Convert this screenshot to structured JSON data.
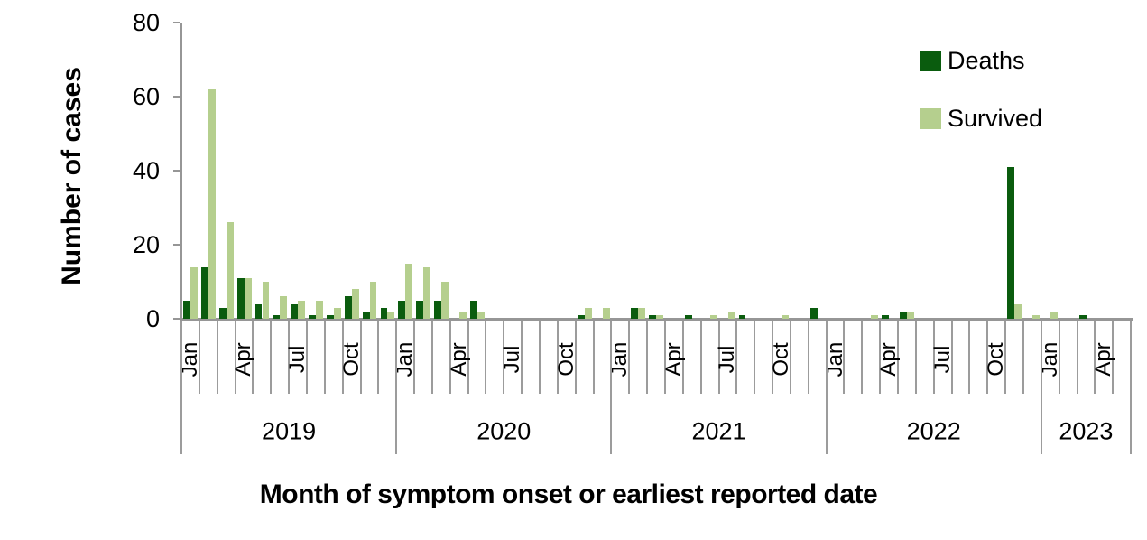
{
  "chart_data": {
    "type": "bar",
    "title": "",
    "xlabel": "Month of symptom onset or earliest reported date",
    "ylabel": "Number of cases",
    "ylim": [
      0,
      80
    ],
    "yticks": [
      0,
      20,
      40,
      60,
      80
    ],
    "grid": false,
    "legend_position": "top-right",
    "categories": [
      "Jan 2019",
      "Feb 2019",
      "Mar 2019",
      "Apr 2019",
      "May 2019",
      "Jun 2019",
      "Jul 2019",
      "Aug 2019",
      "Sep 2019",
      "Oct 2019",
      "Nov 2019",
      "Dec 2019",
      "Jan 2020",
      "Feb 2020",
      "Mar 2020",
      "Apr 2020",
      "May 2020",
      "Jun 2020",
      "Jul 2020",
      "Aug 2020",
      "Sep 2020",
      "Oct 2020",
      "Nov 2020",
      "Dec 2020",
      "Jan 2021",
      "Feb 2021",
      "Mar 2021",
      "Apr 2021",
      "May 2021",
      "Jun 2021",
      "Jul 2021",
      "Aug 2021",
      "Sep 2021",
      "Oct 2021",
      "Nov 2021",
      "Dec 2021",
      "Jan 2022",
      "Feb 2022",
      "Mar 2022",
      "Apr 2022",
      "May 2022",
      "Jun 2022",
      "Jul 2022",
      "Aug 2022",
      "Sep 2022",
      "Oct 2022",
      "Nov 2022",
      "Dec 2022",
      "Jan 2023",
      "Feb 2023",
      "Mar 2023",
      "Apr 2023",
      "May 2023"
    ],
    "series": [
      {
        "name": "Deaths",
        "color": "#0a5c0e",
        "values": [
          5,
          14,
          3,
          11,
          4,
          1,
          4,
          1,
          1,
          6,
          2,
          3,
          5,
          5,
          5,
          0,
          5,
          0,
          0,
          0,
          0,
          0,
          1,
          0,
          0,
          3,
          1,
          0,
          1,
          0,
          0,
          1,
          0,
          0,
          0,
          3,
          0,
          0,
          0,
          1,
          2,
          0,
          0,
          0,
          0,
          0,
          41,
          0,
          0,
          0,
          1,
          0,
          0
        ]
      },
      {
        "name": "Survived",
        "color": "#b5cf8e",
        "values": [
          14,
          62,
          26,
          11,
          10,
          6,
          5,
          5,
          3,
          8,
          10,
          2,
          15,
          14,
          10,
          2,
          2,
          0,
          0,
          0,
          0,
          0,
          3,
          3,
          0,
          3,
          1,
          0,
          0,
          1,
          2,
          0,
          0,
          1,
          0,
          0,
          0,
          0,
          1,
          0,
          2,
          0,
          0,
          0,
          0,
          0,
          4,
          1,
          2,
          0,
          0,
          0,
          0
        ]
      }
    ],
    "years": [
      {
        "label": "2019",
        "months": 12
      },
      {
        "label": "2020",
        "months": 12
      },
      {
        "label": "2021",
        "months": 12
      },
      {
        "label": "2022",
        "months": 12
      },
      {
        "label": "2023",
        "months": 5
      }
    ],
    "month_tick_labels": [
      {
        "i": 0,
        "t": "Jan"
      },
      {
        "i": 3,
        "t": "Apr"
      },
      {
        "i": 6,
        "t": "Jul"
      },
      {
        "i": 9,
        "t": "Oct"
      },
      {
        "i": 12,
        "t": "Jan"
      },
      {
        "i": 15,
        "t": "Apr"
      },
      {
        "i": 18,
        "t": "Jul"
      },
      {
        "i": 21,
        "t": "Oct"
      },
      {
        "i": 24,
        "t": "Jan"
      },
      {
        "i": 27,
        "t": "Apr"
      },
      {
        "i": 30,
        "t": "Jul"
      },
      {
        "i": 33,
        "t": "Oct"
      },
      {
        "i": 36,
        "t": "Jan"
      },
      {
        "i": 39,
        "t": "Apr"
      },
      {
        "i": 42,
        "t": "Jul"
      },
      {
        "i": 45,
        "t": "Oct"
      },
      {
        "i": 48,
        "t": "Jan"
      },
      {
        "i": 51,
        "t": "Apr"
      }
    ],
    "axis_color": "#969696",
    "text_color": "#000000"
  }
}
